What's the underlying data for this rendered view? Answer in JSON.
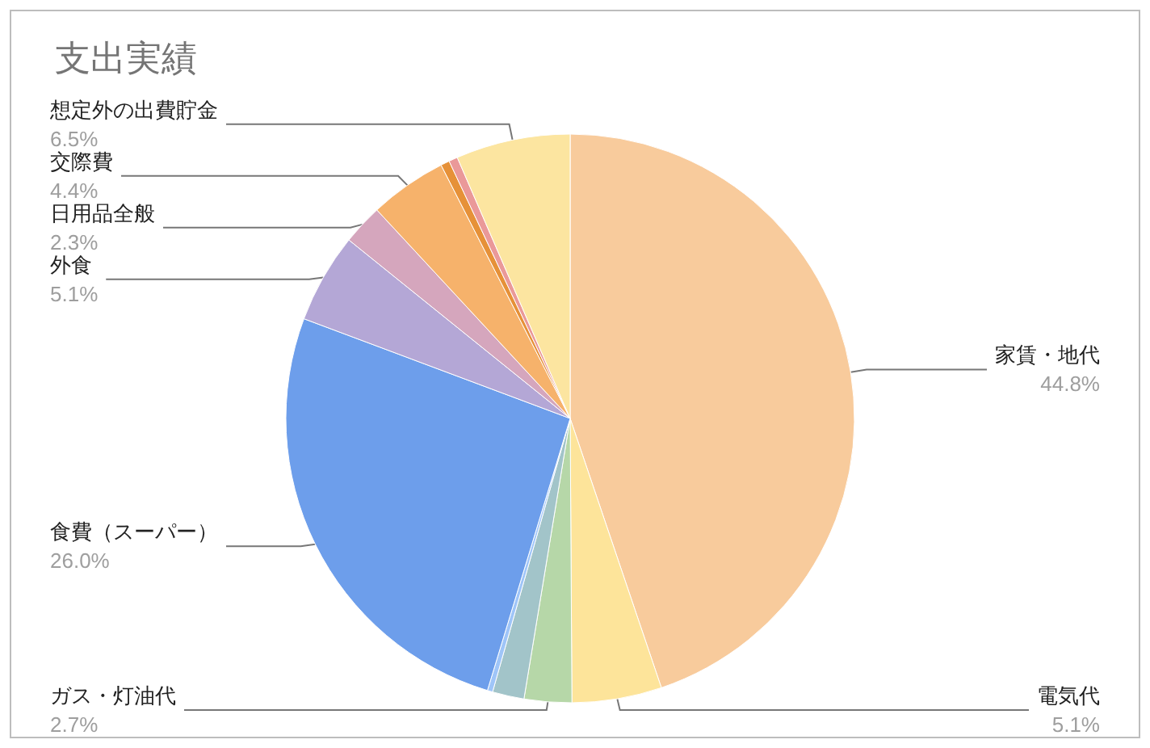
{
  "chart_data": {
    "type": "pie",
    "title": "支出実績",
    "categories": [
      "家賃・地代",
      "電気代",
      "ガス・灯油代",
      null,
      null,
      "食費（スーパー）",
      "外食",
      "日用品全般",
      "交際費",
      null,
      null,
      "想定外の出費貯金"
    ],
    "values": [
      44.8,
      5.1,
      2.7,
      1.8,
      0.3,
      26.0,
      5.1,
      2.3,
      4.4,
      0.5,
      0.5,
      6.5
    ],
    "value_labels": [
      "44.8%",
      "5.1%",
      "2.7%",
      null,
      null,
      "26.0%",
      "5.1%",
      "2.3%",
      "4.4%",
      null,
      null,
      "6.5%"
    ],
    "colors": [
      "#f8cb9c",
      "#fde49a",
      "#b6d7a8",
      "#a2c4c9",
      "#9fc5f8",
      "#6d9eeb",
      "#b4a7d6",
      "#d5a6bd",
      "#f6b26b",
      "#e69138",
      "#ea9999",
      "#fce5a0"
    ],
    "legend": false
  }
}
